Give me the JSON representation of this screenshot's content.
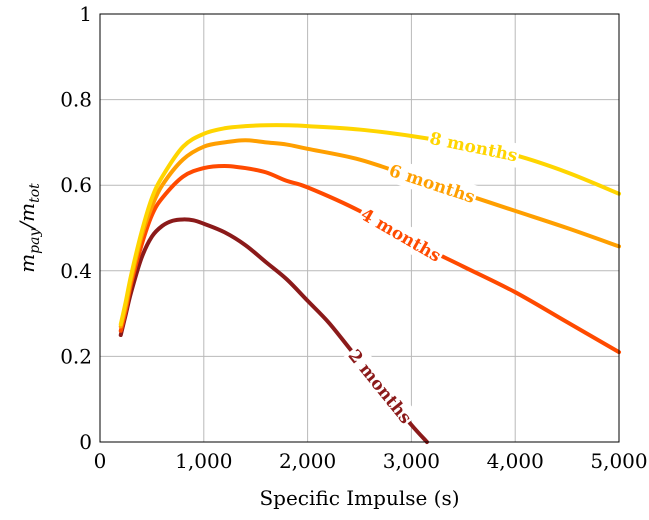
{
  "chart_data": {
    "type": "line",
    "xlabel": "Specific Impulse (s)",
    "ylabel": "m_pay/m_tot",
    "ylabel_main": "m",
    "ylabel_sub1": "pay",
    "ylabel_slash": "/m",
    "ylabel_sub2": "tot",
    "xlim": [
      0,
      5000
    ],
    "ylim": [
      0,
      1
    ],
    "xticks": [
      0,
      1000,
      2000,
      3000,
      4000,
      5000
    ],
    "xtick_labels": [
      "0",
      "1,000",
      "2,000",
      "3,000",
      "4,000",
      "5,000"
    ],
    "yticks": [
      0,
      0.2,
      0.4,
      0.6,
      0.8,
      1
    ],
    "ytick_labels": [
      "0",
      "0.2",
      "0.4",
      "0.6",
      "0.8",
      "1"
    ],
    "grid": true,
    "series": [
      {
        "name": "2 months",
        "color": "#8b1a1a",
        "label_at": 2700,
        "x": [
          200,
          250,
          300,
          400,
          500,
          600,
          700,
          800,
          900,
          1000,
          1200,
          1400,
          1600,
          1800,
          2000,
          2200,
          2400,
          2600,
          2800,
          3000,
          3150
        ],
        "y": [
          0.25,
          0.3,
          0.35,
          0.43,
          0.48,
          0.505,
          0.517,
          0.52,
          0.518,
          0.51,
          0.49,
          0.46,
          0.42,
          0.38,
          0.33,
          0.28,
          0.22,
          0.16,
          0.1,
          0.04,
          0.0
        ]
      },
      {
        "name": "4 months",
        "color": "#ff4a00",
        "label_at": 2900,
        "x": [
          200,
          250,
          300,
          400,
          500,
          600,
          800,
          1000,
          1200,
          1400,
          1600,
          1800,
          2000,
          2500,
          3000,
          3500,
          4000,
          4500,
          5000
        ],
        "y": [
          0.26,
          0.31,
          0.37,
          0.46,
          0.53,
          0.57,
          0.62,
          0.64,
          0.645,
          0.64,
          0.63,
          0.61,
          0.595,
          0.54,
          0.47,
          0.41,
          0.35,
          0.28,
          0.21
        ]
      },
      {
        "name": "6 months",
        "color": "#ff9f00",
        "label_at": 3200,
        "x": [
          200,
          250,
          300,
          400,
          500,
          600,
          800,
          1000,
          1200,
          1400,
          1600,
          1800,
          2000,
          2500,
          3000,
          3500,
          4000,
          4500,
          5000
        ],
        "y": [
          0.27,
          0.32,
          0.38,
          0.48,
          0.55,
          0.6,
          0.66,
          0.69,
          0.7,
          0.705,
          0.7,
          0.695,
          0.685,
          0.66,
          0.62,
          0.58,
          0.54,
          0.5,
          0.457
        ]
      },
      {
        "name": "8 months",
        "color": "#ffd500",
        "label_at": 3600,
        "x": [
          200,
          250,
          300,
          400,
          500,
          600,
          800,
          1000,
          1200,
          1400,
          1600,
          1800,
          2000,
          2500,
          3000,
          3500,
          4000,
          4500,
          5000
        ],
        "y": [
          0.275,
          0.33,
          0.39,
          0.49,
          0.57,
          0.62,
          0.69,
          0.72,
          0.733,
          0.738,
          0.74,
          0.74,
          0.738,
          0.73,
          0.715,
          0.695,
          0.67,
          0.63,
          0.58
        ]
      }
    ]
  }
}
